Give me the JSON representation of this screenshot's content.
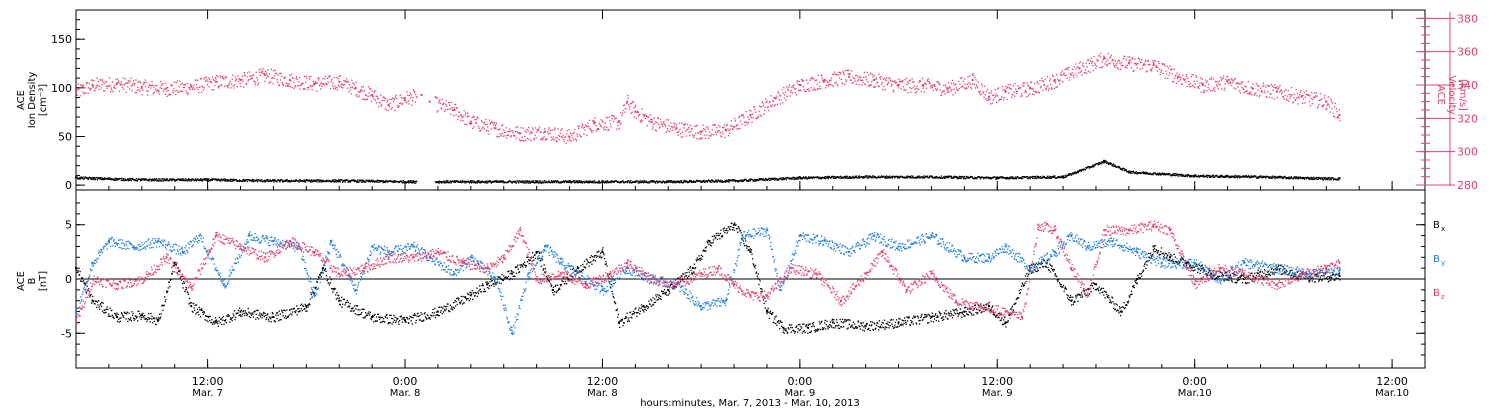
{
  "colors": {
    "black": "#000000",
    "red": "#e8406c",
    "blue": "#1f7fe0",
    "axis": "#000000"
  },
  "xaxis": {
    "title": "hours:minutes, Mar.  7, 2013 - Mar. 10, 2013",
    "ticks": [
      {
        "label": "12:00",
        "date": "Mar. 7",
        "hour": 12
      },
      {
        "label": "0:00",
        "date": "Mar. 8",
        "hour": 24
      },
      {
        "label": "12:00",
        "date": "Mar. 8",
        "hour": 36
      },
      {
        "label": "0:00",
        "date": "Mar. 9",
        "hour": 48
      },
      {
        "label": "12:00",
        "date": "Mar. 9",
        "hour": 60
      },
      {
        "label": "0:00",
        "date": "Mar.10",
        "hour": 72
      },
      {
        "label": "12:00",
        "date": "Mar.10",
        "hour": 84
      }
    ]
  },
  "chart_data": [
    {
      "type": "scatter",
      "panel": "top",
      "ylabel_left": [
        "ACE",
        "Ion Density",
        "[cm⁻³]"
      ],
      "ylabel_right": [
        "ACE",
        "Velocity",
        "[km/s]"
      ],
      "yticks_left": [
        "0",
        "50",
        "100",
        "150"
      ],
      "ylim_left": [
        -5,
        180
      ],
      "yticks_right": [
        "280",
        "300",
        "320",
        "340",
        "360",
        "380"
      ],
      "ylim_right": [
        277,
        385
      ],
      "xlim_hours": [
        4,
        86
      ],
      "series": [
        {
          "axis": "right",
          "color_key": "red",
          "points": [
            [
              4.0,
              336
            ],
            [
              5.0,
              340
            ],
            [
              6.5,
              341
            ],
            [
              8.0,
              339
            ],
            [
              9.5,
              338
            ],
            [
              11.0,
              339
            ],
            [
              12.5,
              342
            ],
            [
              14.0,
              343
            ],
            [
              15.5,
              346
            ],
            [
              17.0,
              343
            ],
            [
              18.5,
              341
            ],
            [
              20.0,
              342
            ],
            [
              21.0,
              338
            ],
            [
              22.0,
              334
            ],
            [
              23.0,
              328
            ],
            [
              24.0,
              332
            ],
            [
              25.0,
              334
            ],
            [
              25.5,
              330
            ],
            [
              27.0,
              325
            ],
            [
              28.0,
              318
            ],
            [
              29.5,
              314
            ],
            [
              31.0,
              311
            ],
            [
              32.5,
              312
            ],
            [
              34.0,
              309
            ],
            [
              35.5,
              317
            ],
            [
              37.0,
              318
            ],
            [
              37.5,
              330
            ],
            [
              38.0,
              324
            ],
            [
              39.0,
              318
            ],
            [
              40.5,
              314
            ],
            [
              42.0,
              312
            ],
            [
              43.5,
              313
            ],
            [
              45.0,
              322
            ],
            [
              46.5,
              332
            ],
            [
              48.0,
              340
            ],
            [
              49.5,
              343
            ],
            [
              51.0,
              345
            ],
            [
              52.5,
              343
            ],
            [
              54.0,
              340
            ],
            [
              55.5,
              340
            ],
            [
              57.0,
              338
            ],
            [
              58.5,
              343
            ],
            [
              59.5,
              333
            ],
            [
              60.5,
              336
            ],
            [
              62.0,
              338
            ],
            [
              63.5,
              343
            ],
            [
              65.0,
              350
            ],
            [
              66.5,
              356
            ],
            [
              68.0,
              353
            ],
            [
              69.5,
              352
            ],
            [
              71.0,
              345
            ],
            [
              72.5,
              340
            ],
            [
              74.0,
              342
            ],
            [
              75.5,
              338
            ],
            [
              77.0,
              336
            ],
            [
              78.5,
              333
            ],
            [
              80.0,
              330
            ],
            [
              80.8,
              322
            ]
          ]
        },
        {
          "axis": "left",
          "color_key": "black",
          "points": [
            [
              4.0,
              8
            ],
            [
              8.0,
              6
            ],
            [
              12.0,
              6
            ],
            [
              16.0,
              5
            ],
            [
              20.0,
              5
            ],
            [
              24.5,
              4
            ],
            [
              28.0,
              4
            ],
            [
              32.0,
              4
            ],
            [
              36.0,
              4
            ],
            [
              40.0,
              4
            ],
            [
              44.0,
              5
            ],
            [
              48.0,
              8
            ],
            [
              52.0,
              9
            ],
            [
              56.0,
              9
            ],
            [
              60.0,
              8
            ],
            [
              64.0,
              9
            ],
            [
              66.5,
              25
            ],
            [
              68.0,
              14
            ],
            [
              72.0,
              10
            ],
            [
              76.0,
              9
            ],
            [
              80.8,
              7
            ]
          ]
        }
      ]
    },
    {
      "type": "scatter",
      "panel": "bottom",
      "ylabel_left": [
        "ACE",
        "B",
        "[nT]"
      ],
      "yticks_left": [
        "-5",
        "0",
        "5"
      ],
      "ylim_left": [
        -8.2,
        8.2
      ],
      "xlim_hours": [
        4,
        86
      ],
      "legend": [
        {
          "label": "B",
          "sub": "x",
          "color_key": "black"
        },
        {
          "label": "B",
          "sub": "y",
          "color_key": "blue"
        },
        {
          "label": "B",
          "sub": "z",
          "color_key": "red"
        }
      ],
      "series": [
        {
          "name": "Bx",
          "color_key": "black",
          "points": [
            [
              4.0,
              1.0
            ],
            [
              5.0,
              -2.0
            ],
            [
              6.5,
              -3.5
            ],
            [
              8.0,
              -3.3
            ],
            [
              9.0,
              -3.8
            ],
            [
              10.0,
              1.5
            ],
            [
              11.0,
              -2.5
            ],
            [
              12.5,
              -4.0
            ],
            [
              14.0,
              -3.0
            ],
            [
              16.0,
              -3.5
            ],
            [
              18.0,
              -2.5
            ],
            [
              19.0,
              1.0
            ],
            [
              20.0,
              -2.0
            ],
            [
              22.0,
              -3.5
            ],
            [
              24.0,
              -3.8
            ],
            [
              26.0,
              -3.0
            ],
            [
              28.0,
              -1.5
            ],
            [
              29.0,
              -0.5
            ],
            [
              30.5,
              0.5
            ],
            [
              32.0,
              2.5
            ],
            [
              33.0,
              -1.0
            ],
            [
              34.5,
              1.0
            ],
            [
              36.0,
              2.5
            ],
            [
              37.0,
              -4.0
            ],
            [
              38.5,
              -2.5
            ],
            [
              40.0,
              -1.0
            ],
            [
              41.5,
              1.0
            ],
            [
              42.5,
              3.5
            ],
            [
              44.0,
              5.0
            ],
            [
              45.0,
              2.5
            ],
            [
              46.0,
              -3.0
            ],
            [
              47.0,
              -4.5
            ],
            [
              48.5,
              -4.5
            ],
            [
              50.0,
              -4.0
            ],
            [
              52.0,
              -4.3
            ],
            [
              54.0,
              -4.0
            ],
            [
              56.0,
              -3.5
            ],
            [
              58.0,
              -3.0
            ],
            [
              59.5,
              -2.5
            ],
            [
              60.5,
              -4.0
            ],
            [
              62.0,
              1.0
            ],
            [
              63.0,
              1.5
            ],
            [
              64.5,
              -2.0
            ],
            [
              66.0,
              -0.5
            ],
            [
              67.5,
              -3.0
            ],
            [
              68.5,
              0.0
            ],
            [
              69.5,
              3.0
            ],
            [
              70.5,
              2.0
            ],
            [
              71.5,
              1.5
            ],
            [
              73.0,
              0.5
            ],
            [
              75.0,
              0.0
            ],
            [
              77.0,
              1.0
            ],
            [
              79.0,
              0.2
            ],
            [
              80.8,
              0.3
            ]
          ]
        },
        {
          "name": "By",
          "color_key": "blue",
          "points": [
            [
              4.0,
              -3.0
            ],
            [
              5.0,
              1.5
            ],
            [
              6.0,
              3.5
            ],
            [
              7.5,
              3.0
            ],
            [
              9.0,
              3.5
            ],
            [
              10.5,
              2.5
            ],
            [
              11.5,
              4.0
            ],
            [
              13.0,
              -0.5
            ],
            [
              14.5,
              4.0
            ],
            [
              16.0,
              3.5
            ],
            [
              17.5,
              3.0
            ],
            [
              18.5,
              -1.5
            ],
            [
              19.5,
              3.5
            ],
            [
              21.0,
              -1.0
            ],
            [
              22.0,
              3.0
            ],
            [
              23.0,
              2.5
            ],
            [
              24.5,
              3.0
            ],
            [
              25.5,
              2.0
            ],
            [
              27.0,
              0.5
            ],
            [
              28.0,
              2.0
            ],
            [
              29.5,
              0.0
            ],
            [
              30.5,
              -5.0
            ],
            [
              31.5,
              0.5
            ],
            [
              32.5,
              3.0
            ],
            [
              33.5,
              1.5
            ],
            [
              35.0,
              0.0
            ],
            [
              36.0,
              -1.0
            ],
            [
              37.5,
              1.0
            ],
            [
              39.0,
              0.0
            ],
            [
              40.5,
              -0.5
            ],
            [
              42.0,
              -2.5
            ],
            [
              43.5,
              -2.0
            ],
            [
              44.5,
              4.0
            ],
            [
              46.0,
              4.5
            ],
            [
              46.8,
              -1.0
            ],
            [
              48.0,
              4.0
            ],
            [
              49.5,
              3.5
            ],
            [
              51.0,
              2.5
            ],
            [
              52.5,
              4.0
            ],
            [
              54.0,
              3.0
            ],
            [
              56.0,
              4.0
            ],
            [
              58.0,
              2.0
            ],
            [
              59.5,
              2.0
            ],
            [
              60.5,
              3.0
            ],
            [
              62.0,
              1.0
            ],
            [
              63.5,
              2.5
            ],
            [
              64.5,
              4.0
            ],
            [
              65.5,
              3.0
            ],
            [
              67.0,
              3.5
            ],
            [
              68.5,
              2.5
            ],
            [
              70.0,
              1.5
            ],
            [
              72.0,
              1.5
            ],
            [
              73.5,
              0.0
            ],
            [
              75.0,
              1.5
            ],
            [
              77.0,
              1.0
            ],
            [
              79.0,
              0.5
            ],
            [
              80.8,
              0.8
            ]
          ]
        },
        {
          "name": "Bz",
          "color_key": "red",
          "points": [
            [
              4.0,
              -4.0
            ],
            [
              5.0,
              0.0
            ],
            [
              6.5,
              -0.5
            ],
            [
              8.0,
              0.0
            ],
            [
              9.5,
              2.0
            ],
            [
              11.0,
              -0.8
            ],
            [
              12.5,
              4.0
            ],
            [
              14.0,
              3.0
            ],
            [
              15.5,
              2.0
            ],
            [
              17.0,
              3.5
            ],
            [
              18.5,
              2.5
            ],
            [
              20.0,
              0.5
            ],
            [
              21.5,
              1.0
            ],
            [
              23.0,
              2.0
            ],
            [
              24.5,
              2.0
            ],
            [
              26.0,
              2.5
            ],
            [
              27.5,
              1.5
            ],
            [
              29.0,
              1.0
            ],
            [
              30.0,
              2.0
            ],
            [
              31.0,
              4.5
            ],
            [
              32.0,
              0.0
            ],
            [
              33.5,
              0.5
            ],
            [
              35.0,
              -0.5
            ],
            [
              36.5,
              0.5
            ],
            [
              37.5,
              1.5
            ],
            [
              39.0,
              0.0
            ],
            [
              40.5,
              -0.5
            ],
            [
              42.0,
              0.5
            ],
            [
              43.0,
              1.0
            ],
            [
              44.0,
              -0.5
            ],
            [
              45.0,
              -1.5
            ],
            [
              46.0,
              -1.5
            ],
            [
              47.5,
              1.0
            ],
            [
              49.0,
              0.5
            ],
            [
              50.5,
              -2.0
            ],
            [
              52.0,
              0.5
            ],
            [
              53.0,
              2.5
            ],
            [
              54.5,
              -1.0
            ],
            [
              56.0,
              0.5
            ],
            [
              57.5,
              -2.0
            ],
            [
              59.0,
              -2.5
            ],
            [
              60.5,
              -3.0
            ],
            [
              61.5,
              -3.5
            ],
            [
              62.5,
              5.0
            ],
            [
              63.5,
              4.5
            ],
            [
              64.5,
              1.0
            ],
            [
              65.5,
              -1.5
            ],
            [
              66.5,
              4.5
            ],
            [
              68.0,
              4.5
            ],
            [
              69.5,
              5.0
            ],
            [
              70.5,
              4.5
            ],
            [
              72.0,
              -0.5
            ],
            [
              73.5,
              1.0
            ],
            [
              75.0,
              0.5
            ],
            [
              77.0,
              -0.5
            ],
            [
              78.5,
              0.5
            ],
            [
              80.0,
              1.0
            ],
            [
              80.8,
              1.5
            ]
          ]
        }
      ]
    }
  ]
}
